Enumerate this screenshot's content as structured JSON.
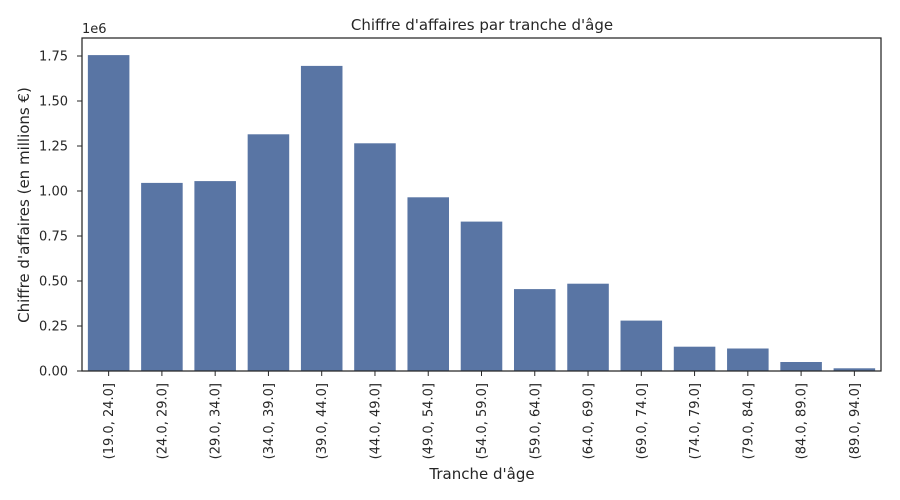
{
  "chart_data": {
    "type": "bar",
    "title": "Chiffre d'affaires par tranche d'âge",
    "xlabel": "Tranche d'âge",
    "ylabel": "Chiffre d'affaires (en millions €)",
    "offset_label": "1e6",
    "categories": [
      "(19.0, 24.0]",
      "(24.0, 29.0]",
      "(29.0, 34.0]",
      "(34.0, 39.0]",
      "(39.0, 44.0]",
      "(44.0, 49.0]",
      "(49.0, 54.0]",
      "(54.0, 59.0]",
      "(59.0, 64.0]",
      "(64.0, 69.0]",
      "(69.0, 74.0]",
      "(74.0, 79.0]",
      "(79.0, 84.0]",
      "(84.0, 89.0]",
      "(89.0, 94.0]"
    ],
    "values": [
      1755000,
      1045000,
      1055000,
      1315000,
      1695000,
      1265000,
      965000,
      830000,
      455000,
      485000,
      280000,
      135000,
      125000,
      50000,
      15000
    ],
    "yticks": [
      0,
      250000,
      500000,
      750000,
      1000000,
      1250000,
      1500000,
      1750000
    ],
    "ytick_labels": [
      "0.00",
      "0.25",
      "0.50",
      "0.75",
      "1.00",
      "1.25",
      "1.50",
      "1.75"
    ],
    "ylim": [
      0,
      1850000
    ],
    "grid": false,
    "bar_color": "#5975a4"
  }
}
